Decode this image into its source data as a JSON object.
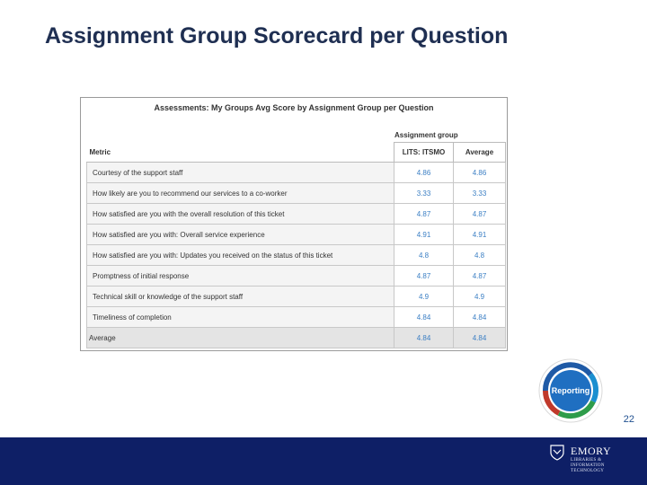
{
  "slide": {
    "title": "Assignment Group Scorecard per Question",
    "page_number": "22"
  },
  "report": {
    "heading": "Assessments: My Groups Avg Score by Assignment Group per Question",
    "group_label": "Assignment group",
    "columns": {
      "metric": "Metric",
      "group": "LITS: ITSMO",
      "average": "Average"
    },
    "rows": [
      {
        "metric": "Courtesy of the support staff",
        "group": "4.86",
        "average": "4.86"
      },
      {
        "metric": "How likely are you to recommend our services to a co-worker",
        "group": "3.33",
        "average": "3.33"
      },
      {
        "metric": "How satisfied are you with the overall resolution of this ticket",
        "group": "4.87",
        "average": "4.87"
      },
      {
        "metric": "How satisfied are you with: Overall service experience",
        "group": "4.91",
        "average": "4.91"
      },
      {
        "metric": "How satisfied are you with: Updates you received on the status of this ticket",
        "group": "4.8",
        "average": "4.8"
      },
      {
        "metric": "Promptness of initial response",
        "group": "4.87",
        "average": "4.87"
      },
      {
        "metric": "Technical skill or knowledge of the support staff",
        "group": "4.9",
        "average": "4.9"
      },
      {
        "metric": "Timeliness of completion",
        "group": "4.84",
        "average": "4.84"
      }
    ],
    "total": {
      "label": "Average",
      "group": "4.84",
      "average": "4.84"
    }
  },
  "badge": {
    "label": "Reporting",
    "colors": [
      "#1f5aa6",
      "#c0392b",
      "#2e9c4a",
      "#1a8fd0"
    ]
  },
  "footer": {
    "background": "#0e1f66",
    "logo_name": "EMORY",
    "logo_sub": "LIBRARIES & INFORMATION TECHNOLOGY"
  }
}
